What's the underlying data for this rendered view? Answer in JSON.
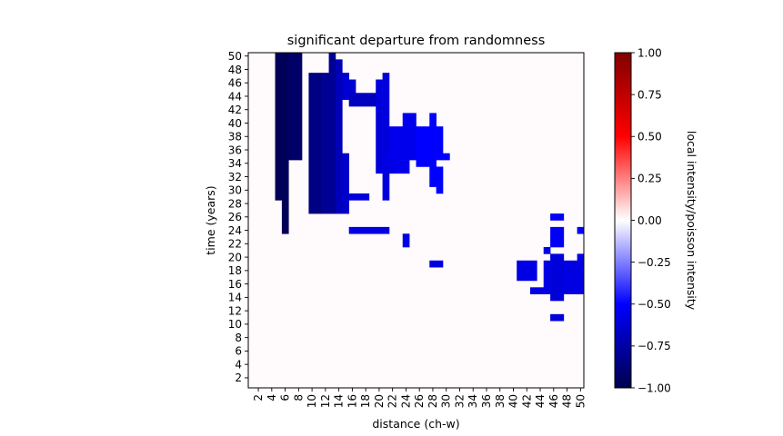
{
  "chart_data": {
    "type": "heatmap",
    "title": "significant departure from randomness",
    "xlabel": "distance (ch-w)",
    "ylabel": "time (years)",
    "x_ticks": [
      2,
      4,
      6,
      8,
      10,
      12,
      14,
      16,
      18,
      20,
      22,
      24,
      26,
      28,
      30,
      32,
      34,
      36,
      38,
      40,
      42,
      44,
      46,
      48,
      50
    ],
    "y_ticks": [
      2,
      4,
      6,
      8,
      10,
      12,
      14,
      16,
      18,
      20,
      22,
      24,
      26,
      28,
      30,
      32,
      34,
      36,
      38,
      40,
      42,
      44,
      46,
      48,
      50
    ],
    "xlim": [
      1,
      50
    ],
    "ylim": [
      1,
      50
    ],
    "colorbar": {
      "label": "local intensity/poisson intensity",
      "min": -1.0,
      "max": 1.0,
      "tick_labels": [
        "1.00",
        "0.75",
        "0.50",
        "0.25",
        "0.00",
        "−0.25",
        "−0.50",
        "−0.75",
        "−1.00"
      ],
      "tick_values": [
        1.0,
        0.75,
        0.5,
        0.25,
        0.0,
        -0.25,
        -0.5,
        -0.75,
        -1.0
      ],
      "colormap": "seismic"
    },
    "background_value": 0.0,
    "cells": [
      {
        "x0": 5,
        "x1": 6,
        "y0": 29,
        "y1": 50,
        "v": -0.97
      },
      {
        "x0": 6,
        "x1": 6,
        "y0": 24,
        "y1": 28,
        "v": -0.97
      },
      {
        "x0": 7,
        "x1": 8,
        "y0": 35,
        "y1": 50,
        "v": -0.93
      },
      {
        "x0": 10,
        "x1": 11,
        "y0": 27,
        "y1": 47,
        "v": -0.85
      },
      {
        "x0": 12,
        "x1": 13,
        "y0": 27,
        "y1": 47,
        "v": -0.8
      },
      {
        "x0": 13,
        "x1": 13,
        "y0": 48,
        "y1": 50,
        "v": -0.8
      },
      {
        "x0": 14,
        "x1": 14,
        "y0": 27,
        "y1": 49,
        "v": -0.7
      },
      {
        "x0": 15,
        "x1": 15,
        "y0": 27,
        "y1": 35,
        "v": -0.65
      },
      {
        "x0": 15,
        "x1": 15,
        "y0": 44,
        "y1": 47,
        "v": -0.62
      },
      {
        "x0": 16,
        "x1": 16,
        "y0": 45,
        "y1": 46,
        "v": -0.62
      },
      {
        "x0": 16,
        "x1": 19,
        "y0": 43,
        "y1": 44,
        "v": -0.68
      },
      {
        "x0": 20,
        "x1": 20,
        "y0": 33,
        "y1": 46,
        "v": -0.6
      },
      {
        "x0": 21,
        "x1": 21,
        "y0": 38,
        "y1": 47,
        "v": -0.6
      },
      {
        "x0": 16,
        "x1": 18,
        "y0": 29,
        "y1": 29,
        "v": -0.6
      },
      {
        "x0": 21,
        "x1": 21,
        "y0": 29,
        "y1": 37,
        "v": -0.6
      },
      {
        "x0": 21,
        "x1": 22,
        "y0": 33,
        "y1": 35,
        "v": -0.58
      },
      {
        "x0": 22,
        "x1": 25,
        "y0": 35,
        "y1": 39,
        "v": -0.55
      },
      {
        "x0": 23,
        "x1": 24,
        "y0": 33,
        "y1": 34,
        "v": -0.55
      },
      {
        "x0": 24,
        "x1": 25,
        "y0": 40,
        "y1": 41,
        "v": -0.55
      },
      {
        "x0": 26,
        "x1": 28,
        "y0": 34,
        "y1": 39,
        "v": -0.5
      },
      {
        "x0": 28,
        "x1": 28,
        "y0": 40,
        "y1": 41,
        "v": -0.5
      },
      {
        "x0": 28,
        "x1": 29,
        "y0": 31,
        "y1": 33,
        "v": -0.5
      },
      {
        "x0": 29,
        "x1": 29,
        "y0": 30,
        "y1": 30,
        "v": -0.5
      },
      {
        "x0": 29,
        "x1": 29,
        "y0": 35,
        "y1": 39,
        "v": -0.5
      },
      {
        "x0": 30,
        "x1": 30,
        "y0": 35,
        "y1": 35,
        "v": -0.5
      },
      {
        "x0": 16,
        "x1": 21,
        "y0": 24,
        "y1": 24,
        "v": -0.58
      },
      {
        "x0": 24,
        "x1": 24,
        "y0": 22,
        "y1": 23,
        "v": -0.58
      },
      {
        "x0": 28,
        "x1": 29,
        "y0": 19,
        "y1": 19,
        "v": -0.58
      },
      {
        "x0": 41,
        "x1": 43,
        "y0": 17,
        "y1": 19,
        "v": -0.58
      },
      {
        "x0": 43,
        "x1": 45,
        "y0": 15,
        "y1": 15,
        "v": -0.58
      },
      {
        "x0": 45,
        "x1": 45,
        "y0": 16,
        "y1": 19,
        "v": -0.58
      },
      {
        "x0": 45,
        "x1": 45,
        "y0": 21,
        "y1": 21,
        "v": -0.58
      },
      {
        "x0": 46,
        "x1": 47,
        "y0": 14,
        "y1": 20,
        "v": -0.6
      },
      {
        "x0": 48,
        "x1": 50,
        "y0": 15,
        "y1": 19,
        "v": -0.58
      },
      {
        "x0": 50,
        "x1": 50,
        "y0": 20,
        "y1": 20,
        "v": -0.58
      },
      {
        "x0": 46,
        "x1": 47,
        "y0": 22,
        "y1": 24,
        "v": -0.52
      },
      {
        "x0": 46,
        "x1": 47,
        "y0": 26,
        "y1": 26,
        "v": -0.52
      },
      {
        "x0": 50,
        "x1": 50,
        "y0": 24,
        "y1": 24,
        "v": -0.52
      },
      {
        "x0": 46,
        "x1": 47,
        "y0": 11,
        "y1": 11,
        "v": -0.6
      }
    ]
  }
}
